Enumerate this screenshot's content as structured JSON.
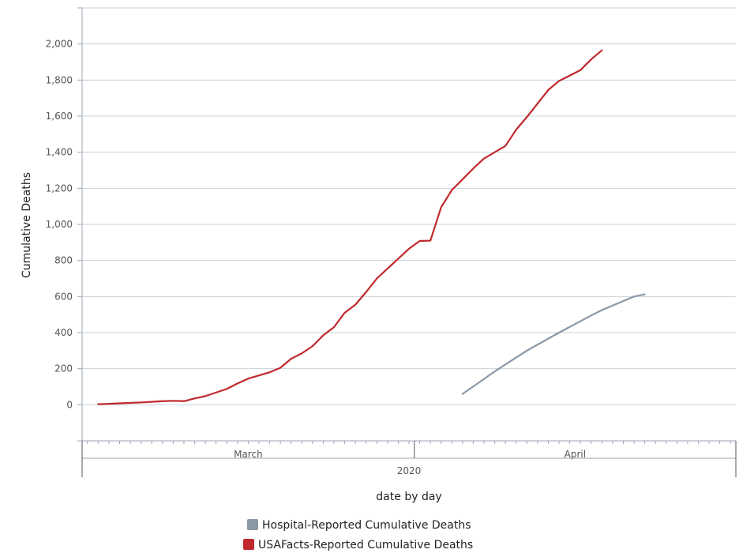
{
  "chart_data": {
    "type": "line",
    "xlabel": "date by day",
    "ylabel": "Cumulative Deaths",
    "ylim": [
      -200,
      2200
    ],
    "yticks": [
      0,
      200,
      400,
      600,
      800,
      1000,
      1200,
      1400,
      1600,
      1800,
      2000
    ],
    "ytick_labels": [
      "0",
      "200",
      "400",
      "600",
      "800",
      "1,000",
      "1,200",
      "1,400",
      "1,600",
      "1,800",
      "2,000"
    ],
    "x_start": "2020-03-01",
    "x_end": "2020-04-30",
    "month_labels": [
      "March",
      "April"
    ],
    "year_label": "2020",
    "grid": true,
    "legend_position": "bottom",
    "series": [
      {
        "name": "Hospital-Reported Cumulative Deaths",
        "color": "#8a98a6",
        "points": [
          [
            "2020-04-05",
            60
          ],
          [
            "2020-04-08",
            185
          ],
          [
            "2020-04-11",
            300
          ],
          [
            "2020-04-14",
            400
          ],
          [
            "2020-04-17",
            495
          ],
          [
            "2020-04-18",
            525
          ],
          [
            "2020-04-20",
            575
          ],
          [
            "2020-04-21",
            600
          ],
          [
            "2020-04-22",
            612
          ]
        ]
      },
      {
        "name": "USAFacts-Reported Cumulative Deaths",
        "color": "#c0292d",
        "points": [
          [
            "2020-03-02",
            3
          ],
          [
            "2020-03-04",
            8
          ],
          [
            "2020-03-06",
            13
          ],
          [
            "2020-03-08",
            20
          ],
          [
            "2020-03-09",
            22
          ],
          [
            "2020-03-10",
            20
          ],
          [
            "2020-03-11",
            35
          ],
          [
            "2020-03-12",
            48
          ],
          [
            "2020-03-14",
            88
          ],
          [
            "2020-03-15",
            118
          ],
          [
            "2020-03-16",
            145
          ],
          [
            "2020-03-18",
            180
          ],
          [
            "2020-03-19",
            205
          ],
          [
            "2020-03-20",
            255
          ],
          [
            "2020-03-21",
            285
          ],
          [
            "2020-03-22",
            325
          ],
          [
            "2020-03-23",
            385
          ],
          [
            "2020-03-24",
            430
          ],
          [
            "2020-03-25",
            510
          ],
          [
            "2020-03-26",
            555
          ],
          [
            "2020-03-27",
            625
          ],
          [
            "2020-03-28",
            700
          ],
          [
            "2020-03-29",
            755
          ],
          [
            "2020-03-30",
            810
          ],
          [
            "2020-03-31",
            865
          ],
          [
            "2020-04-01",
            908
          ],
          [
            "2020-04-02",
            910
          ],
          [
            "2020-04-03",
            1095
          ],
          [
            "2020-04-04",
            1190
          ],
          [
            "2020-04-05",
            1250
          ],
          [
            "2020-04-06",
            1310
          ],
          [
            "2020-04-07",
            1365
          ],
          [
            "2020-04-08",
            1400
          ],
          [
            "2020-04-09",
            1435
          ],
          [
            "2020-04-10",
            1525
          ],
          [
            "2020-04-11",
            1595
          ],
          [
            "2020-04-12",
            1670
          ],
          [
            "2020-04-13",
            1745
          ],
          [
            "2020-04-14",
            1795
          ],
          [
            "2020-04-15",
            1825
          ],
          [
            "2020-04-16",
            1855
          ],
          [
            "2020-04-17",
            1915
          ],
          [
            "2020-04-18",
            1965
          ]
        ]
      }
    ]
  }
}
